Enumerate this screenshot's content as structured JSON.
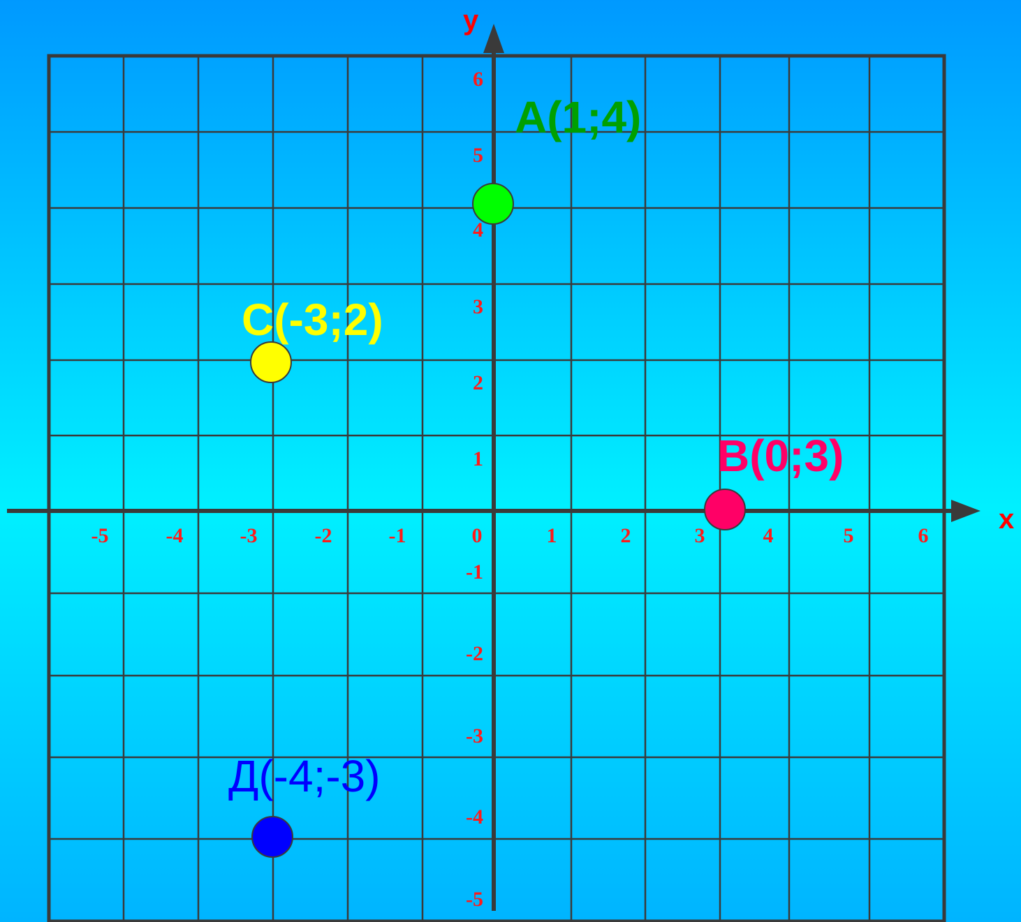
{
  "axes": {
    "x_name": "x",
    "y_name": "y",
    "x_ticks": [
      "-5",
      "-4",
      "-3",
      "-2",
      "-1",
      "0",
      "1",
      "2",
      "3",
      "4",
      "5",
      "6"
    ],
    "y_ticks": [
      "6",
      "5",
      "4",
      "3",
      "2",
      "1",
      "-1",
      "-2",
      "-3",
      "-4",
      "-5"
    ]
  },
  "points": [
    {
      "label": "A(1;4)",
      "color": "#00ff00",
      "label_color": "#00a000",
      "label_weight": "bold"
    },
    {
      "label": "B(0;3)",
      "color": "#ff0066",
      "label_color": "#ff0066",
      "label_weight": "bold"
    },
    {
      "label": "C(-3;2)",
      "color": "#ffff00",
      "label_color": "#ffff00",
      "label_weight": "bold"
    },
    {
      "label": "Д(-4;-3)",
      "color": "#0000ff",
      "label_color": "#0000ff",
      "label_weight": "normal"
    }
  ],
  "colors": {
    "grid": "#3a3a3a",
    "axis": "#3a3a3a",
    "tick": "#ff1a1a",
    "axis_name": "#ff0000"
  }
}
